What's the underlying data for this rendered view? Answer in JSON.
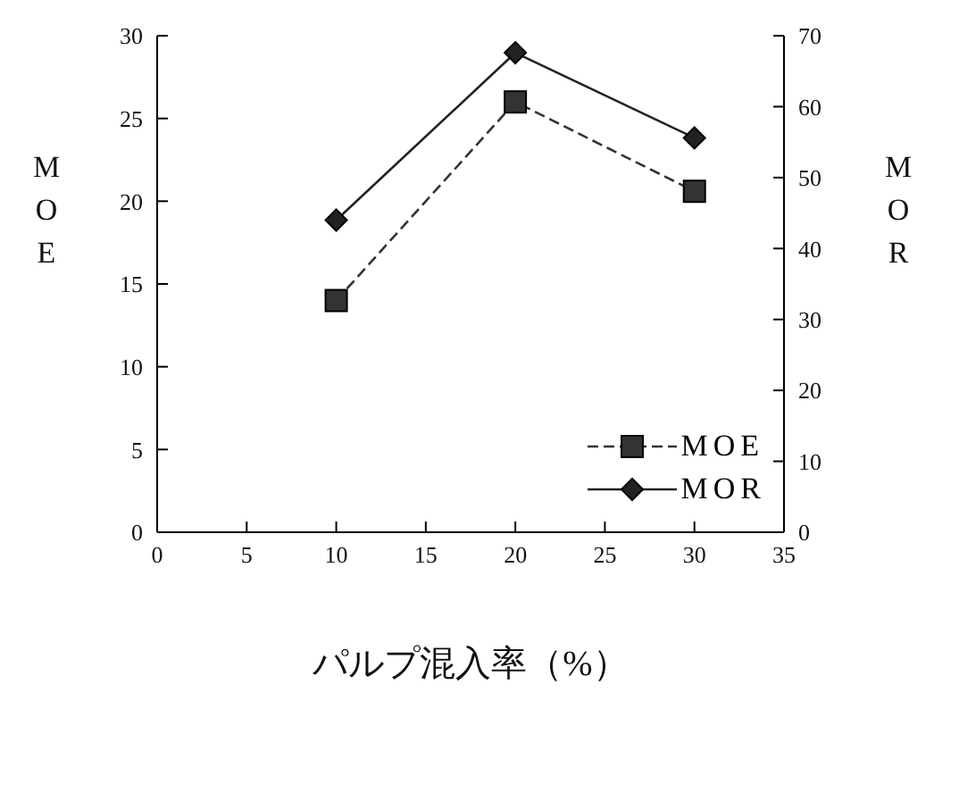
{
  "chart_data": {
    "type": "line",
    "xlabel": "パルプ混入率（%）",
    "ylabel": "MOE",
    "y2label": "MOR",
    "x": [
      10,
      20,
      30
    ],
    "series": [
      {
        "name": "MOE",
        "color": "#333333",
        "values": [
          14,
          26,
          20.6
        ],
        "marker": "square",
        "line_style": "dashed"
      },
      {
        "name": "MOR",
        "color": "#222222",
        "values": [
          44,
          67.6,
          55.6
        ],
        "marker": "diamond",
        "line_style": "solid",
        "axis": "y2"
      }
    ],
    "xlim": [
      0,
      35
    ],
    "xticks": [
      0,
      5,
      10,
      15,
      20,
      25,
      30,
      35
    ],
    "ylim": [
      0,
      30
    ],
    "yticks": [
      0,
      5,
      10,
      15,
      20,
      25,
      30
    ],
    "y2lim": [
      0,
      70
    ],
    "y2ticks": [
      0,
      10,
      20,
      30,
      40,
      50,
      60,
      70
    ],
    "grid": false,
    "legend": "bottom right"
  }
}
